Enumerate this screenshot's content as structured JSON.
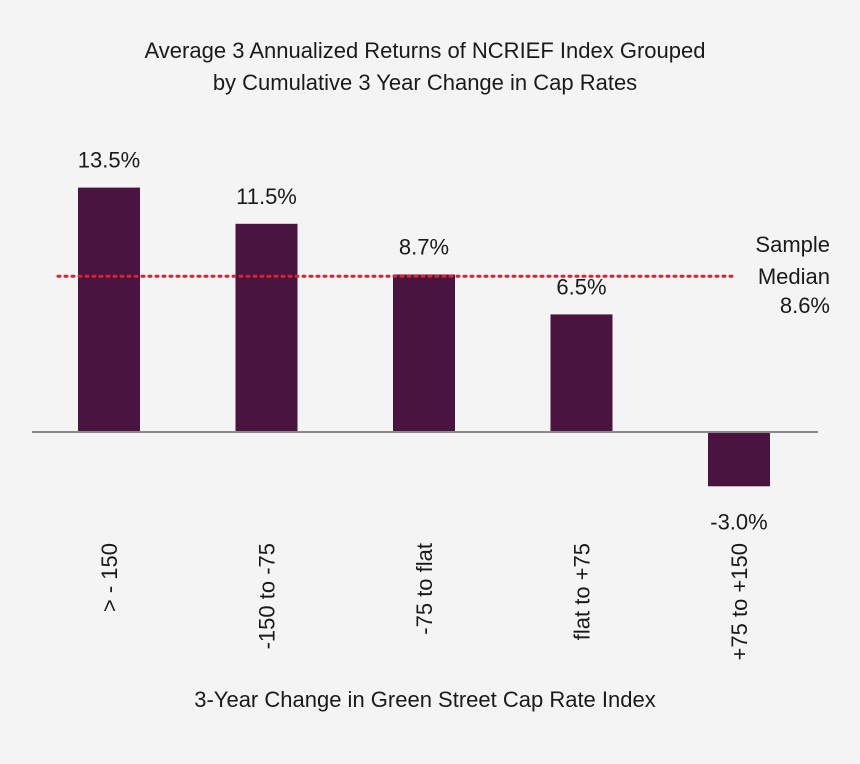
{
  "chart_data": {
    "type": "bar",
    "title_lines": [
      "Average 3 Annualized Returns of NCRIEF Index Grouped",
      "by Cumulative 3 Year Change in Cap Rates"
    ],
    "xlabel": "3-Year Change in Green Street Cap Rate Index",
    "ylabel": "",
    "categories": [
      "> - 150",
      "-150 to -75",
      "-75 to flat",
      "flat to +75",
      "+75 to +150"
    ],
    "values": [
      13.5,
      11.5,
      8.7,
      6.5,
      -3.0
    ],
    "data_labels": [
      "13.5%",
      "11.5%",
      "8.7%",
      "6.5%",
      "-3.0%"
    ],
    "ylim": [
      -3.0,
      13.5
    ],
    "grid": false,
    "legend": "none",
    "reference_line": {
      "value": 8.6,
      "style": "dotted",
      "label_lines": [
        "Sample",
        "Median",
        "8.6%"
      ]
    },
    "colors": {
      "bar": "#4a1440",
      "reference_line": "#d9232e",
      "axis": "#8a8a8a",
      "background": "#f4f4f4"
    }
  }
}
